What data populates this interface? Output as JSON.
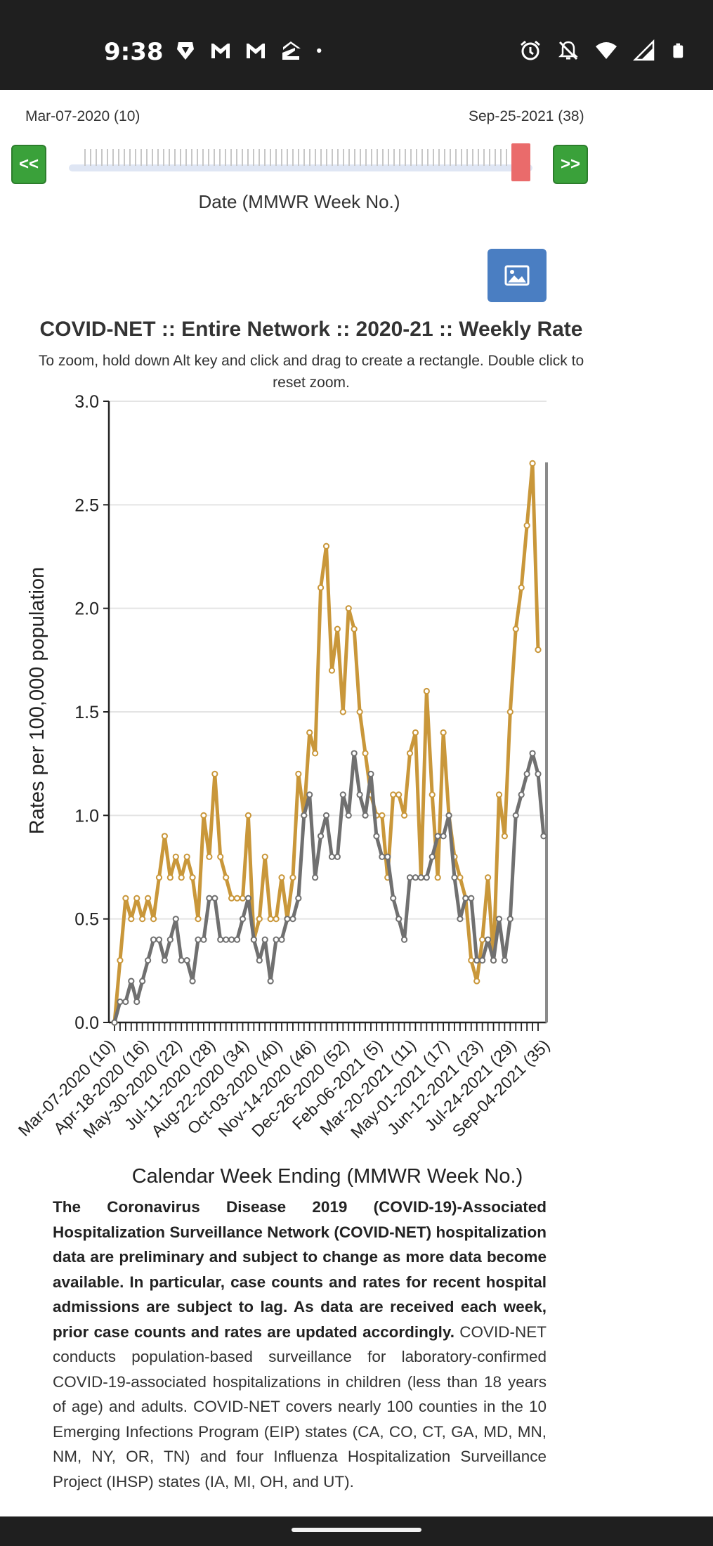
{
  "status_bar": {
    "time": "9:38",
    "left_icons": [
      "brave-lion-icon",
      "gmail-icon",
      "gmail-icon",
      "zillow-icon",
      "dot-icon"
    ],
    "right_icons": [
      "alarm-icon",
      "bell-off-icon",
      "wifi-icon",
      "signal-icon",
      "battery-icon"
    ]
  },
  "slider": {
    "start_label": "Mar-07-2020 (10)",
    "end_label": "Sep-25-2021 (38)",
    "prev_label": "<<",
    "next_label": ">>",
    "caption": "Date (MMWR Week No.)",
    "handle_color": "#ea6b6b"
  },
  "image_button_icon": "image-icon",
  "chart": {
    "title": "COVID-NET :: Entire Network :: 2020-21 :: Weekly Rate",
    "zoom_hint": "To zoom, hold down Alt key and click and drag to create a rectangle. Double click to reset zoom."
  },
  "chart_data": {
    "type": "line",
    "ylabel": "Rates per 100,000 population",
    "xlabel": "Calendar Week Ending (MMWR Week No.)",
    "ylim": [
      0,
      3
    ],
    "yticks": [
      "0.0",
      "0.5",
      "1.0",
      "1.5",
      "2.0",
      "2.5",
      "3.0"
    ],
    "grid": true,
    "tick_labels": [
      "Mar-07-2020 (10)",
      "Apr-18-2020 (16)",
      "May-30-2020 (22)",
      "Jul-11-2020 (28)",
      "Aug-22-2020 (34)",
      "Oct-03-2020 (40)",
      "Nov-14-2020 (46)",
      "Dec-26-2020 (52)",
      "Feb-06-2021 (5)",
      "Mar-20-2021 (11)",
      "May-01-2021 (17)",
      "Jun-12-2021 (23)",
      "Jul-24-2021 (29)",
      "Sep-04-2021 (35)"
    ],
    "series": [
      {
        "color": "#c9973a",
        "values": [
          0.0,
          0.3,
          0.6,
          0.5,
          0.6,
          0.5,
          0.6,
          0.5,
          0.7,
          0.9,
          0.7,
          0.8,
          0.7,
          0.8,
          0.7,
          0.5,
          1.0,
          0.8,
          1.2,
          0.8,
          0.7,
          0.6,
          0.6,
          0.6,
          1.0,
          0.4,
          0.5,
          0.8,
          0.5,
          0.5,
          0.7,
          0.5,
          0.7,
          1.2,
          1.0,
          1.4,
          1.3,
          2.1,
          2.3,
          1.7,
          1.9,
          1.5,
          2.0,
          1.9,
          1.5,
          1.3,
          1.1,
          1.0,
          1.0,
          0.7,
          1.1,
          1.1,
          1.0,
          1.3,
          1.4,
          0.7,
          1.6,
          1.1,
          0.7,
          1.4,
          1.0,
          0.8,
          0.7,
          0.6,
          0.3,
          0.2,
          0.4,
          0.7,
          0.3,
          1.1,
          0.9,
          1.5,
          1.9,
          2.1,
          2.4,
          2.7,
          1.8
        ]
      },
      {
        "color": "#707070",
        "values": [
          0.0,
          0.1,
          0.1,
          0.2,
          0.1,
          0.2,
          0.3,
          0.4,
          0.4,
          0.3,
          0.4,
          0.5,
          0.3,
          0.3,
          0.2,
          0.4,
          0.4,
          0.6,
          0.6,
          0.4,
          0.4,
          0.4,
          0.4,
          0.5,
          0.6,
          0.4,
          0.3,
          0.4,
          0.2,
          0.4,
          0.4,
          0.5,
          0.5,
          0.6,
          1.0,
          1.1,
          0.7,
          0.9,
          1.0,
          0.8,
          0.8,
          1.1,
          1.0,
          1.3,
          1.1,
          1.0,
          1.2,
          0.9,
          0.8,
          0.8,
          0.6,
          0.5,
          0.4,
          0.7,
          0.7,
          0.7,
          0.7,
          0.8,
          0.9,
          0.9,
          1.0,
          0.7,
          0.5,
          0.6,
          0.6,
          0.3,
          0.3,
          0.4,
          0.3,
          0.5,
          0.3,
          0.5,
          1.0,
          1.1,
          1.2,
          1.3,
          1.2,
          0.9
        ]
      }
    ]
  },
  "description": {
    "bold_text": "The Coronavirus Disease 2019 (COVID-19)-Associated Hospitalization Surveillance Network (COVID-NET) hospitalization data are preliminary and subject to change as more data become available. In particular, case counts and rates for recent hospital admissions are subject to lag. As data are received each week, prior case counts and rates are updated accordingly.",
    "normal_text": " COVID-NET conducts population-based surveillance for laboratory-confirmed COVID-19-associated hospitalizations in children (less than 18 years of age) and adults. COVID-NET covers nearly 100 counties in the 10 Emerging Infections Program (EIP) states (CA, CO, CT, GA, MD, MN, NM, NY, OR, TN) and four Influenza Hospitalization Surveillance Project (IHSP) states (IA, MI, OH, and UT)."
  }
}
